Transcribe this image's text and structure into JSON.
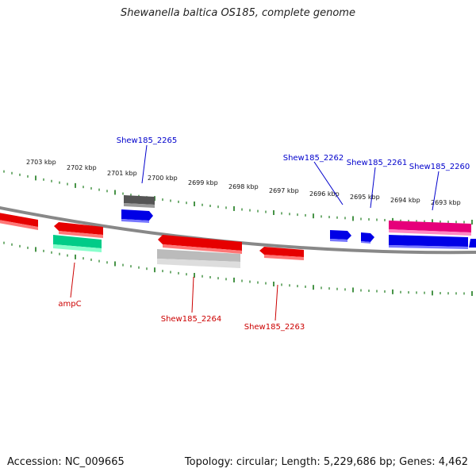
{
  "title": "Shewanella baltica OS185, complete genome",
  "footer": {
    "accession": "Accession: NC_009665",
    "summary": "Topology: circular; Length: 5,229,686 bp; Genes: 4,462"
  },
  "scale_labels": [
    "2703 kbp",
    "2702 kbp",
    "2701 kbp",
    "2700 kbp",
    "2699 kbp",
    "2698 kbp",
    "2697 kbp",
    "2696 kbp",
    "2695 kbp",
    "2694 kbp",
    "2693 kbp"
  ],
  "gene_labels": {
    "forward": [
      "Shew185_2265",
      "Shew185_2262",
      "Shew185_2261",
      "Shew185_2260"
    ],
    "reverse": [
      "ampC",
      "Shew185_2264",
      "Shew185_2263"
    ]
  },
  "colors": {
    "label_forward": "#0000cc",
    "label_reverse": "#cc0000",
    "tick": "#1a7a1a",
    "backbone": "#888888",
    "red_gene": "#e60000",
    "blue_gene": "#0000e6",
    "pink_gene": "#e6007a",
    "green_gene": "#00cc88",
    "gray_gene": "#bbbbbb",
    "dark_gray_gene": "#555555"
  }
}
